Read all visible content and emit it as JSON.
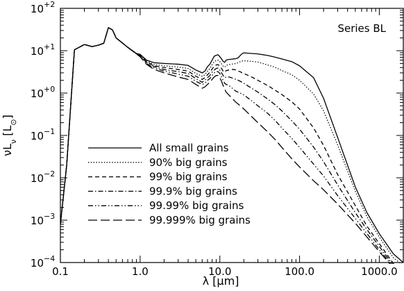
{
  "chart_data": {
    "type": "line",
    "title": "",
    "annotation": "Series BL",
    "xlabel": "λ [μm]",
    "ylabel": "νL_ν [L_⊙]",
    "xscale": "log",
    "yscale": "log",
    "xlim": [
      0.1,
      2000
    ],
    "ylim": [
      0.0001,
      100
    ],
    "x_tick_values": [
      0.1,
      1.0,
      10.0,
      100.0,
      1000.0
    ],
    "x_tick_labels": [
      "0.1",
      "1.0",
      "10.0",
      "100.0",
      "1000.0"
    ],
    "y_tick_values": [
      0.0001,
      0.001,
      0.01,
      0.1,
      1,
      10,
      100
    ],
    "y_tick_labels": [
      "10",
      "10",
      "10",
      "10",
      "10",
      "10",
      "10"
    ],
    "y_tick_exponents": [
      "−4",
      "−3",
      "−2",
      "−1",
      "+0",
      "+1",
      "+2"
    ],
    "grid": false,
    "legend_position": "lower-left",
    "colors": {
      "line": "#000000",
      "background": "#ffffff"
    },
    "series": [
      {
        "name": "All small grains",
        "dash": "solid",
        "x": [
          0.1,
          0.12,
          0.15,
          0.2,
          0.25,
          0.3,
          0.35,
          0.4,
          0.45,
          0.5,
          0.7,
          0.9,
          1.0,
          1.2,
          1.5,
          2,
          3,
          4,
          5,
          6,
          6.5,
          7,
          7.5,
          8,
          8.5,
          9,
          9.5,
          10,
          10.5,
          11,
          11.5,
          12,
          13,
          14,
          15,
          16,
          17,
          18,
          19,
          20,
          25,
          30,
          40,
          50,
          60,
          80,
          100,
          150,
          200,
          300,
          500,
          700,
          1000,
          1500,
          2000
        ],
        "y": [
          0.0008,
          0.02,
          10.5,
          14,
          12.5,
          13.5,
          15,
          35,
          31,
          20,
          12,
          8.6,
          8.2,
          6,
          5.2,
          5,
          4.8,
          4.5,
          3.5,
          3,
          3.3,
          4.2,
          4.8,
          6,
          7.4,
          7.8,
          8,
          7.2,
          6.4,
          5.6,
          5.3,
          6,
          6.2,
          6.3,
          6.4,
          6.5,
          6.8,
          7.7,
          8.5,
          8.9,
          8.6,
          8.4,
          7.7,
          7,
          6.4,
          5.5,
          4.4,
          2.3,
          0.75,
          0.09,
          0.0061,
          0.0015,
          0.00048,
          0.00016,
          0.0001
        ]
      },
      {
        "name": "90% big grains",
        "dash": "dotted",
        "x": [
          0.1,
          0.12,
          0.15,
          0.2,
          0.25,
          0.3,
          0.35,
          0.4,
          0.45,
          0.5,
          0.7,
          0.9,
          1.0,
          1.2,
          1.5,
          2,
          3,
          4,
          5,
          6,
          6.5,
          7,
          7.5,
          8,
          8.5,
          9,
          9.5,
          10,
          10.5,
          11,
          11.5,
          12,
          13,
          14,
          15,
          16,
          17,
          18,
          19,
          20,
          25,
          30,
          40,
          50,
          60,
          80,
          100,
          150,
          200,
          300,
          500,
          700,
          1000,
          1500,
          2000
        ],
        "y": [
          0.0008,
          0.02,
          10.5,
          14,
          12.5,
          13.5,
          15,
          35,
          31,
          20,
          12,
          8.6,
          8,
          5.8,
          4.7,
          4.4,
          4.1,
          3.8,
          2.9,
          2.5,
          2.7,
          3.3,
          3.8,
          4.7,
          5.5,
          5.9,
          6,
          5.5,
          4.9,
          4.3,
          4.1,
          4.5,
          4.7,
          4.8,
          4.9,
          5,
          5.2,
          5.5,
          5.7,
          5.8,
          5.6,
          5.4,
          4.6,
          4,
          3.4,
          2.7,
          2,
          0.95,
          0.38,
          0.06,
          0.0048,
          0.0012,
          0.0004,
          0.00013,
          8.5e-05
        ]
      },
      {
        "name": "99% big grains",
        "dash": "dashed",
        "x": [
          0.1,
          0.12,
          0.15,
          0.2,
          0.25,
          0.3,
          0.35,
          0.4,
          0.45,
          0.5,
          0.7,
          0.9,
          1.0,
          1.2,
          1.5,
          2,
          3,
          4,
          5,
          6,
          6.5,
          7,
          7.5,
          8,
          8.5,
          9,
          9.5,
          10,
          10.5,
          11,
          11.5,
          12,
          13,
          14,
          15,
          16,
          17,
          18,
          19,
          20,
          25,
          30,
          40,
          50,
          60,
          80,
          100,
          150,
          200,
          300,
          500,
          700,
          1000,
          1500,
          2000
        ],
        "y": [
          0.0008,
          0.02,
          10.5,
          14,
          12.5,
          13.5,
          15,
          35,
          31,
          20,
          12,
          8.5,
          7.8,
          5.5,
          4.4,
          4,
          3.6,
          3.3,
          2.5,
          2.1,
          2.3,
          2.7,
          3.1,
          3.7,
          4.3,
          4.6,
          4.7,
          4.3,
          3.8,
          3.3,
          3.1,
          3.4,
          3.5,
          3.6,
          3.6,
          3.5,
          3.3,
          3.2,
          3,
          2.9,
          2.4,
          2,
          1.5,
          1.15,
          0.92,
          0.62,
          0.42,
          0.15,
          0.058,
          0.012,
          0.0022,
          0.00072,
          0.00028,
          9.5e-05,
          7e-05
        ]
      },
      {
        "name": "99.9% big grains",
        "dash": "dashdot",
        "x": [
          0.1,
          0.12,
          0.15,
          0.2,
          0.25,
          0.3,
          0.35,
          0.4,
          0.45,
          0.5,
          0.7,
          0.9,
          1.0,
          1.2,
          1.5,
          2,
          3,
          4,
          5,
          6,
          6.5,
          7,
          7.5,
          8,
          8.5,
          9,
          9.5,
          10,
          10.5,
          11,
          11.5,
          12,
          13,
          14,
          15,
          16,
          17,
          18,
          19,
          20,
          25,
          30,
          40,
          50,
          60,
          80,
          100,
          150,
          200,
          300,
          500,
          700,
          1000,
          1500,
          2000
        ],
        "y": [
          0.0008,
          0.02,
          10.5,
          14,
          12.5,
          13.5,
          15,
          35,
          31,
          20,
          12,
          8.5,
          7.6,
          5.3,
          4.2,
          3.6,
          3.2,
          2.9,
          2.2,
          1.8,
          2,
          2.3,
          2.6,
          3.1,
          3.5,
          3.8,
          3.9,
          3.5,
          3,
          2.6,
          2.3,
          2.4,
          2.4,
          2.3,
          2.2,
          2.1,
          2,
          1.9,
          1.8,
          1.7,
          1.3,
          1.05,
          0.72,
          0.52,
          0.38,
          0.22,
          0.14,
          0.053,
          0.024,
          0.0068,
          0.0015,
          0.0006,
          0.00024,
          8.5e-05,
          6.5e-05
        ]
      },
      {
        "name": "99.99% big grains",
        "dash": "dashdotdot",
        "x": [
          0.1,
          0.12,
          0.15,
          0.2,
          0.25,
          0.3,
          0.35,
          0.4,
          0.45,
          0.5,
          0.7,
          0.9,
          1.0,
          1.2,
          1.5,
          2,
          3,
          4,
          5,
          6,
          6.5,
          7,
          7.5,
          8,
          8.5,
          9,
          9.5,
          10,
          10.5,
          11,
          11.5,
          12,
          13,
          14,
          15,
          16,
          17,
          18,
          19,
          20,
          25,
          30,
          40,
          50,
          60,
          80,
          100,
          150,
          200,
          300,
          500,
          700,
          1000,
          1500,
          2000
        ],
        "y": [
          0.0008,
          0.02,
          10.5,
          14,
          12.5,
          13.5,
          15,
          35,
          31,
          20,
          12,
          8.4,
          7.4,
          5,
          3.9,
          3.3,
          2.8,
          2.5,
          1.9,
          1.6,
          1.7,
          2,
          2.2,
          2.6,
          3,
          3.2,
          3.2,
          2.9,
          2.4,
          2,
          1.7,
          1.6,
          1.5,
          1.35,
          1.2,
          1.1,
          1.05,
          1,
          0.95,
          0.9,
          0.66,
          0.5,
          0.33,
          0.22,
          0.15,
          0.085,
          0.052,
          0.021,
          0.011,
          0.0038,
          0.0011,
          0.00048,
          0.0002,
          8e-05,
          6e-05
        ]
      },
      {
        "name": "99.999% big grains",
        "dash": "longdash",
        "x": [
          0.1,
          0.12,
          0.15,
          0.2,
          0.25,
          0.3,
          0.35,
          0.4,
          0.45,
          0.5,
          0.7,
          0.9,
          1.0,
          1.2,
          1.5,
          2,
          3,
          4,
          5,
          6,
          6.5,
          7,
          7.5,
          8,
          8.5,
          9,
          9.5,
          10,
          10.5,
          11,
          11.5,
          12,
          13,
          14,
          15,
          16,
          17,
          18,
          19,
          20,
          25,
          30,
          40,
          50,
          60,
          80,
          100,
          150,
          200,
          300,
          500,
          700,
          1000,
          1500,
          2000
        ],
        "y": [
          0.0008,
          0.02,
          10.5,
          14,
          12.5,
          13.5,
          15,
          35,
          31,
          20,
          12,
          8.3,
          7.2,
          4.8,
          3.6,
          3,
          2.4,
          2.1,
          1.6,
          1.3,
          1.4,
          1.6,
          1.8,
          2.1,
          2.4,
          2.6,
          2.6,
          2.3,
          1.9,
          1.5,
          1.25,
          1.05,
          0.9,
          0.78,
          0.68,
          0.6,
          0.55,
          0.5,
          0.46,
          0.42,
          0.28,
          0.2,
          0.12,
          0.078,
          0.052,
          0.028,
          0.018,
          0.0085,
          0.0052,
          0.0024,
          0.00085,
          0.0004,
          0.00018,
          7.5e-05,
          5.5e-05
        ]
      }
    ]
  }
}
